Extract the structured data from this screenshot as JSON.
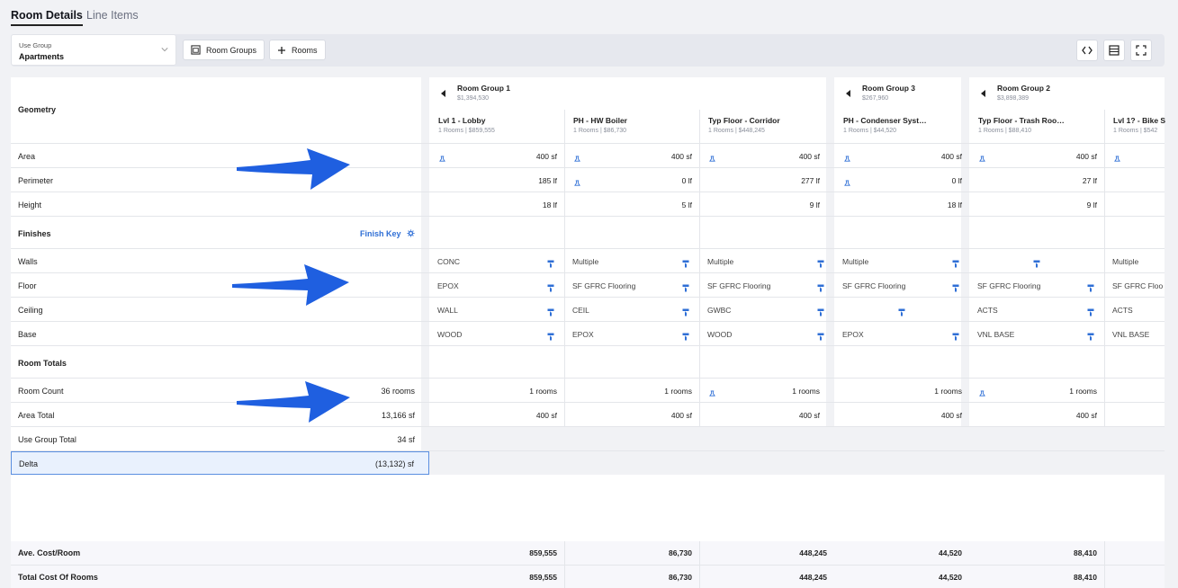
{
  "tabs": {
    "active": "Room Details",
    "inactive": "Line Items"
  },
  "toolbar": {
    "use_group_label": "Use Group",
    "use_group_value": "Apartments",
    "room_groups_label": "Room Groups",
    "rooms_label": "Rooms",
    "icons": [
      "code-icon",
      "table-layout-icon",
      "fullscreen-icon"
    ]
  },
  "sections": {
    "geometry": "Geometry",
    "finishes": "Finishes",
    "finish_key": "Finish Key",
    "room_totals": "Room Totals"
  },
  "row_labels": {
    "area": "Area",
    "perimeter": "Perimeter",
    "height": "Height",
    "walls": "Walls",
    "floor": "Floor",
    "ceiling": "Ceiling",
    "base": "Base",
    "room_count": "Room Count",
    "area_total": "Area Total",
    "use_group_total": "Use Group Total",
    "delta": "Delta",
    "ave_cost": "Ave. Cost/Room",
    "total_cost": "Total Cost Of Rooms"
  },
  "summary": {
    "room_count": "36 rooms",
    "area_total": "13,166 sf",
    "use_group_total": "34 sf",
    "delta": "(13,132) sf"
  },
  "groups": [
    {
      "name": "Room Group 1",
      "cost": "$1,394,530"
    },
    {
      "name": "Room Group 3",
      "cost": "$267,960"
    },
    {
      "name": "Room Group 2",
      "cost": "$3,898,389"
    }
  ],
  "columns": [
    {
      "name": "Lvl 1 - Lobby",
      "sub": "1 Rooms | $859,555",
      "area": "400 sf",
      "perimeter": "185 lf",
      "height": "18 lf",
      "walls": "CONC",
      "floor": "EPOX",
      "ceiling": "WALL",
      "base": "WOOD",
      "room_count": "1 rooms",
      "area_total": "400 sf",
      "ave_cost": "859,555",
      "total_cost": "859,555"
    },
    {
      "name": "PH - HW Boiler",
      "sub": "1 Rooms | $86,730",
      "area": "400 sf",
      "perimeter": "0 lf",
      "height": "5 lf",
      "walls": "Multiple",
      "floor": "SF GFRC Flooring",
      "ceiling": "CEIL",
      "base": "EPOX",
      "room_count": "1 rooms",
      "area_total": "400 sf",
      "ave_cost": "86,730",
      "total_cost": "86,730"
    },
    {
      "name": "Typ Floor - Corridor",
      "sub": "1 Rooms | $448,245",
      "area": "400 sf",
      "perimeter": "277 lf",
      "height": "9 lf",
      "walls": "Multiple",
      "floor": "SF GFRC Flooring",
      "ceiling": "GWBC",
      "base": "WOOD",
      "room_count": "1 rooms",
      "area_total": "400 sf",
      "ave_cost": "448,245",
      "total_cost": "448,245"
    },
    {
      "name": "PH - Condenser Syst…",
      "sub": "1 Rooms | $44,520",
      "area": "400 sf",
      "perimeter": "0 lf",
      "height": "18 lf",
      "walls": "Multiple",
      "floor": "SF GFRC Flooring",
      "ceiling": "",
      "base": "EPOX",
      "room_count": "1 rooms",
      "area_total": "400 sf",
      "ave_cost": "44,520",
      "total_cost": "44,520"
    },
    {
      "name": "Typ Floor - Trash Roo…",
      "sub": "1 Rooms | $88,410",
      "area": "400 sf",
      "perimeter": "27 lf",
      "height": "9 lf",
      "walls": "",
      "floor": "SF GFRC Flooring",
      "ceiling": "ACTS",
      "base": "VNL BASE",
      "room_count": "1 rooms",
      "area_total": "400 sf",
      "ave_cost": "88,410",
      "total_cost": "88,410"
    },
    {
      "name": "Lvl 1? - Bike S",
      "sub": "1 Rooms | $542",
      "area": "",
      "perimeter": "",
      "height": "",
      "walls": "Multiple",
      "floor": "SF GFRC Floo",
      "ceiling": "ACTS",
      "base": "VNL BASE",
      "room_count": "",
      "area_total": "",
      "ave_cost": "",
      "total_cost": ""
    }
  ],
  "colors": {
    "accent": "#2f6fd6",
    "arrow": "#1f5fe0",
    "delta_bg": "#e9f1fd"
  }
}
